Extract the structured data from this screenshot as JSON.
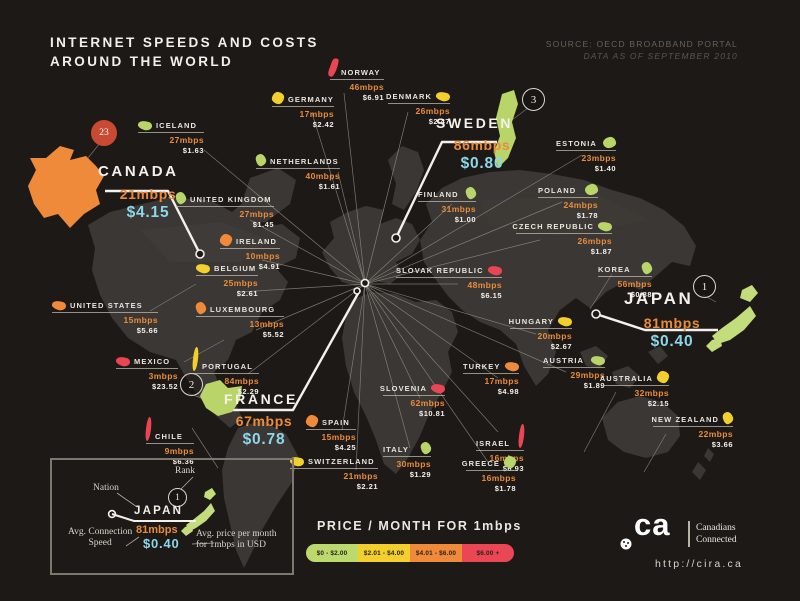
{
  "title": {
    "line1": "INTERNET SPEEDS AND COSTS",
    "line2": "AROUND THE WORLD"
  },
  "source": {
    "line1": "SOURCE: OECD BROADBAND PORTAL",
    "line2": "DATA AS OF SEPTEMBER 2010"
  },
  "legend": {
    "title": "PRICE / MONTH  FOR 1mbps",
    "tiers": [
      {
        "label": "$0 - $2.00",
        "color": "#bcd96e"
      },
      {
        "label": "$2.01 - $4.00",
        "color": "#f2cf2c"
      },
      {
        "label": "$4.01 - $6.00",
        "color": "#ef8a3a"
      },
      {
        "label": "$6.00 +",
        "color": "#ea4653"
      }
    ]
  },
  "key_box": {
    "rank_label": "Rank",
    "nation_label": "Nation",
    "speed_label_line1": "Avg. Connection",
    "speed_label_line2": "Speed",
    "price_label_line1": "Avg. price per month",
    "price_label_line2": "for 1mbps in USD",
    "example": {
      "nation": "JAPAN",
      "rank": "1",
      "speed": "81mbps",
      "price": "$0.40"
    }
  },
  "footer": {
    "logo": "ca",
    "tagline_line1": "Canadians",
    "tagline_line2": "Connected",
    "url": "http://cira.ca"
  },
  "countries": [
    {
      "name": "NORWAY",
      "speed": "46mbps",
      "price": "$6.91",
      "tier": "red"
    },
    {
      "name": "GERMANY",
      "speed": "17mbps",
      "price": "$2.42",
      "tier": "yellow"
    },
    {
      "name": "DENMARK",
      "speed": "26mbps",
      "price": "$2.47",
      "tier": "yellow"
    },
    {
      "name": "SWEDEN",
      "speed": "86mbps",
      "price": "$0.80",
      "tier": "green",
      "rank": "3"
    },
    {
      "name": "ICELAND",
      "speed": "27mbps",
      "price": "$1.63",
      "tier": "green"
    },
    {
      "name": "ESTONIA",
      "speed": "23mbps",
      "price": "$1.40",
      "tier": "green"
    },
    {
      "name": "CANADA",
      "speed": "21mbps",
      "price": "$4.15",
      "tier": "orange",
      "rank": "23"
    },
    {
      "name": "NETHERLANDS",
      "speed": "40mbps",
      "price": "$1.61",
      "tier": "green"
    },
    {
      "name": "UNITED KINGDOM",
      "speed": "27mbps",
      "price": "$1.45",
      "tier": "green"
    },
    {
      "name": "FINLAND",
      "speed": "31mbps",
      "price": "$1.00",
      "tier": "green"
    },
    {
      "name": "POLAND",
      "speed": "24mbps",
      "price": "$1.78",
      "tier": "green"
    },
    {
      "name": "IRELAND",
      "speed": "10mbps",
      "price": "$4.91",
      "tier": "orange"
    },
    {
      "name": "CZECH REPUBLIC",
      "speed": "26mbps",
      "price": "$1.87",
      "tier": "green"
    },
    {
      "name": "BELGIUM",
      "speed": "25mbps",
      "price": "$2.61",
      "tier": "yellow"
    },
    {
      "name": "SLOVAK REPUBLIC",
      "speed": "48mbps",
      "price": "$6.15",
      "tier": "red"
    },
    {
      "name": "KOREA",
      "speed": "56mbps",
      "price": "$0.88",
      "tier": "green"
    },
    {
      "name": "JAPAN",
      "speed": "81mbps",
      "price": "$0.40",
      "tier": "green",
      "rank": "1"
    },
    {
      "name": "UNITED STATES",
      "speed": "15mbps",
      "price": "$5.66",
      "tier": "orange"
    },
    {
      "name": "LUXEMBOURG",
      "speed": "13mbps",
      "price": "$5.52",
      "tier": "orange"
    },
    {
      "name": "HUNGARY",
      "speed": "20mbps",
      "price": "$2.67",
      "tier": "yellow"
    },
    {
      "name": "MEXICO",
      "speed": "3mbps",
      "price": "$23.52",
      "tier": "red"
    },
    {
      "name": "PORTUGAL",
      "speed": "84mbps",
      "price": "$2.29",
      "tier": "yellow"
    },
    {
      "name": "AUSTRIA",
      "speed": "29mbps",
      "price": "$1.89",
      "tier": "green"
    },
    {
      "name": "TURKEY",
      "speed": "17mbps",
      "price": "$4.98",
      "tier": "orange"
    },
    {
      "name": "AUSTRALIA",
      "speed": "32mbps",
      "price": "$2.15",
      "tier": "yellow"
    },
    {
      "name": "FRANCE",
      "speed": "67mbps",
      "price": "$0.78",
      "tier": "green",
      "rank": "2"
    },
    {
      "name": "SLOVENIA",
      "speed": "62mbps",
      "price": "$10.81",
      "tier": "red"
    },
    {
      "name": "CHILE",
      "speed": "9mbps",
      "price": "$6.36",
      "tier": "red"
    },
    {
      "name": "SPAIN",
      "speed": "15mbps",
      "price": "$4.25",
      "tier": "orange"
    },
    {
      "name": "ISRAEL",
      "speed": "16mbps",
      "price": "$6.93",
      "tier": "red"
    },
    {
      "name": "NEW ZEALAND",
      "speed": "22mbps",
      "price": "$3.66",
      "tier": "yellow"
    },
    {
      "name": "ITALY",
      "speed": "30mbps",
      "price": "$1.29",
      "tier": "green"
    },
    {
      "name": "GREECE",
      "speed": "16mbps",
      "price": "$1.78",
      "tier": "green"
    },
    {
      "name": "SWITZERLAND",
      "speed": "21mbps",
      "price": "$2.21",
      "tier": "yellow"
    }
  ],
  "chart_data": {
    "type": "table",
    "title": "Internet Speeds and Costs Around the World",
    "source": "OECD Broadband Portal, data as of September 2010",
    "columns": [
      "Nation",
      "Avg. connection speed (mbps)",
      "Avg. price per month for 1mbps (USD)"
    ],
    "categories": [
      "Norway",
      "Germany",
      "Denmark",
      "Sweden",
      "Iceland",
      "Estonia",
      "Canada",
      "Netherlands",
      "United Kingdom",
      "Finland",
      "Poland",
      "Ireland",
      "Czech Republic",
      "Belgium",
      "Slovak Republic",
      "Korea",
      "Japan",
      "United States",
      "Luxembourg",
      "Hungary",
      "Mexico",
      "Portugal",
      "Austria",
      "Turkey",
      "Australia",
      "France",
      "Slovenia",
      "Chile",
      "Spain",
      "Israel",
      "New Zealand",
      "Italy",
      "Greece",
      "Switzerland"
    ],
    "series": [
      {
        "name": "Avg. connection speed (mbps)",
        "values": [
          46,
          17,
          26,
          86,
          27,
          23,
          21,
          40,
          27,
          31,
          24,
          10,
          26,
          25,
          48,
          56,
          81,
          15,
          13,
          20,
          3,
          84,
          29,
          17,
          32,
          67,
          62,
          9,
          15,
          16,
          22,
          30,
          16,
          21
        ]
      },
      {
        "name": "Avg. price per month for 1mbps (USD)",
        "values": [
          6.91,
          2.42,
          2.47,
          0.8,
          1.63,
          1.4,
          4.15,
          1.61,
          1.45,
          1.0,
          1.78,
          4.91,
          1.87,
          2.61,
          6.15,
          0.88,
          0.4,
          5.66,
          5.52,
          2.67,
          23.52,
          2.29,
          1.89,
          4.98,
          2.15,
          0.78,
          10.81,
          6.36,
          4.25,
          6.93,
          3.66,
          1.29,
          1.78,
          2.21
        ]
      }
    ],
    "ranks_by_price": {
      "Japan": 1,
      "France": 2,
      "Sweden": 3,
      "Canada": 23
    },
    "legend_position": "bottom",
    "price_tier_colors": {
      "$0-$2.00": "#bcd96e",
      "$2.01-$4.00": "#f2cf2c",
      "$4.01-$6.00": "#ef8a3a",
      "$6.00+": "#ea4653"
    }
  }
}
